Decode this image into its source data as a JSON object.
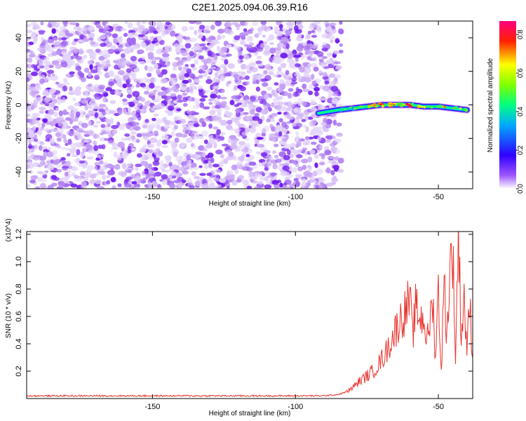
{
  "title": "C2E1.2025.094.06.39.R16",
  "chart_data": [
    {
      "type": "heatmap",
      "xlabel": "Height of straight line (km)",
      "ylabel": "Frequency (Hz)",
      "xlim": [
        -194,
        -38
      ],
      "ylim": [
        -50,
        50
      ],
      "xticks": [
        -150,
        -100,
        -50
      ],
      "yticks": [
        -40,
        -20,
        0,
        20,
        40
      ],
      "colorbar": {
        "label": "Normalized spectral amplitude",
        "range": [
          0.0,
          0.87
        ],
        "ticks": [
          0.0,
          0.2,
          0.4,
          0.6,
          0.8
        ],
        "colors": [
          "#ffffff",
          "#7b00ff",
          "#0000ff",
          "#00ffff",
          "#00ff00",
          "#ffff00",
          "#ff0000",
          "#ff0080"
        ]
      },
      "noise_region": {
        "x": [
          -194,
          -84
        ],
        "f": [
          -50,
          50
        ],
        "amplitude": [
          0.02,
          0.15
        ]
      },
      "signal_track": {
        "x": [
          -92,
          -85,
          -80,
          -75,
          -70,
          -65,
          -60,
          -55,
          -50,
          -45,
          -40
        ],
        "f": [
          -5,
          -3,
          -2,
          -1,
          0,
          0,
          0,
          -1,
          -1,
          -2,
          -3
        ],
        "amplitude": [
          0.2,
          0.4,
          0.5,
          0.6,
          0.7,
          0.7,
          0.75,
          0.7,
          0.7,
          0.65,
          0.55
        ]
      }
    },
    {
      "type": "line",
      "xlabel": "Height of straight line (km)",
      "ylabel": "SNR (10 * v/v)",
      "y_multiplier": "(x10^4)",
      "xlim": [
        -194,
        -38
      ],
      "ylim": [
        0,
        1.22
      ],
      "xticks": [
        -150,
        -100,
        -50
      ],
      "yticks": [
        0.2,
        0.4,
        0.6,
        0.8,
        1.0,
        1.2
      ],
      "series": [
        {
          "color": "#e8342d",
          "x": [
            -194,
            -180,
            -160,
            -140,
            -120,
            -100,
            -90,
            -85,
            -82,
            -80,
            -78,
            -76,
            -74,
            -72,
            -70,
            -68,
            -66,
            -64,
            -62,
            -60,
            -59,
            -58,
            -56,
            -55,
            -54,
            -52,
            -51,
            -50,
            -49,
            -48,
            -47,
            -46,
            -45,
            -44,
            -43,
            -42,
            -41,
            -40,
            -39,
            -38
          ],
          "y": [
            0.02,
            0.02,
            0.02,
            0.02,
            0.02,
            0.02,
            0.02,
            0.03,
            0.05,
            0.08,
            0.12,
            0.15,
            0.18,
            0.22,
            0.28,
            0.35,
            0.45,
            0.55,
            0.62,
            0.72,
            0.45,
            0.66,
            0.58,
            0.6,
            0.4,
            0.72,
            0.3,
            0.8,
            0.2,
            0.85,
            0.45,
            0.95,
            1.1,
            0.3,
            1.22,
            0.45,
            0.75,
            0.35,
            0.7,
            0.3
          ]
        }
      ]
    }
  ]
}
